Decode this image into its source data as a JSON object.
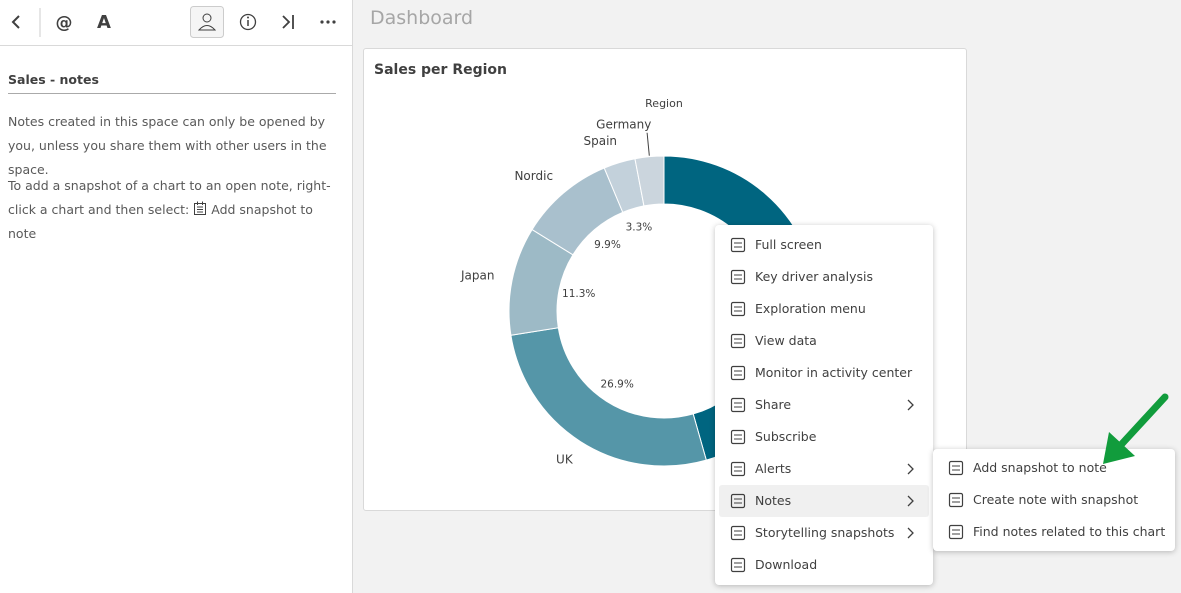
{
  "toolbar": {
    "mention": "@",
    "format": "A"
  },
  "note": {
    "title": "Sales - notes",
    "paragraph_1": "Notes created in this space can only be opened by you, unless you share them with other users in the space.",
    "paragraph_2": "To add a snapshot of a chart to an open note, right-click a chart and then select:",
    "paragraph_2_action": "Add snapshot to note"
  },
  "header": {
    "title": "Dashboard"
  },
  "chart_data": {
    "type": "donut",
    "title": "Sales per Region",
    "dimension_label": "Region",
    "categories": [
      null,
      "UK",
      "Japan",
      "Nordic",
      "Spain",
      "Germany"
    ],
    "values": [
      45.6,
      26.9,
      11.3,
      9.9,
      3.3,
      3.0
    ],
    "value_labels": [
      null,
      "26.9%",
      "11.3%",
      "9.9%",
      "3.3%",
      null
    ],
    "colors": [
      "#006580",
      "#5596a8",
      "#9dbac6",
      "#a9c0cd",
      "#c3d1db",
      "#cbd5dd"
    ]
  },
  "context_menu": {
    "items": [
      {
        "label": "Full screen"
      },
      {
        "label": "Key driver analysis"
      },
      {
        "label": "Exploration menu"
      },
      {
        "label": "View data"
      },
      {
        "label": "Monitor in activity center"
      },
      {
        "label": "Share",
        "has_submenu": true
      },
      {
        "label": "Subscribe"
      },
      {
        "label": "Alerts",
        "has_submenu": true
      },
      {
        "label": "Notes",
        "has_submenu": true,
        "highlighted": true
      },
      {
        "label": "Storytelling snapshots",
        "has_submenu": true
      },
      {
        "label": "Download"
      }
    ]
  },
  "submenu": {
    "items": [
      {
        "label": "Add snapshot to note"
      },
      {
        "label": "Create note with snapshot"
      },
      {
        "label": "Find notes related to this chart"
      }
    ]
  }
}
